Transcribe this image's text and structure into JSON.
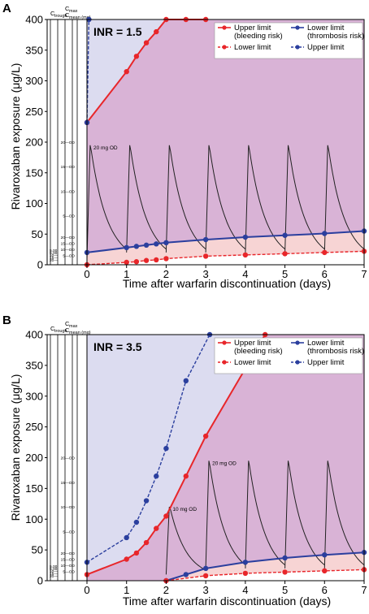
{
  "chart_data": [
    {
      "panel": "A",
      "type": "line",
      "inr_label": "INR = 1.5",
      "xlabel": "Time after warfarin discontinuation (days)",
      "ylabel": "Rivaroxaban exposure (μg/L)",
      "xlim": [
        0,
        7
      ],
      "ylim": [
        0,
        400
      ],
      "xticks": [
        0,
        1,
        2,
        3,
        4,
        5,
        6,
        7
      ],
      "yticks": [
        0,
        50,
        100,
        150,
        200,
        250,
        300,
        350,
        400
      ],
      "legend": {
        "position": "top-right",
        "entries": [
          {
            "label_lines": [
              "Upper limit",
              "(bleeding risk)"
            ],
            "color": "#e8262a",
            "style": "solid"
          },
          {
            "label_lines": [
              "Lower limit",
              "(thrombosis risk)"
            ],
            "color": "#2b3f9e",
            "style": "solid"
          },
          {
            "label_lines": [
              "Lower limit"
            ],
            "color": "#e8262a",
            "style": "dashed"
          },
          {
            "label_lines": [
              "Upper limit"
            ],
            "color": "#2b3f9e",
            "style": "dashed"
          }
        ]
      },
      "series": [
        {
          "role": "bleeding-upper",
          "color": "#e8262a",
          "style": "solid",
          "x": [
            0,
            1,
            1.25,
            1.5,
            1.75,
            2,
            2.5,
            3
          ],
          "y": [
            232,
            315,
            340,
            362,
            380,
            400,
            400,
            400
          ]
        },
        {
          "role": "bleeding-lower",
          "color": "#e8262a",
          "style": "dashed",
          "x": [
            0,
            1,
            1.25,
            1.5,
            1.75,
            2,
            3,
            4,
            5,
            6,
            7
          ],
          "y": [
            0,
            4,
            5,
            7,
            8,
            10,
            14,
            16,
            18,
            20,
            22
          ]
        },
        {
          "role": "thrombosis-lower",
          "color": "#2b3f9e",
          "style": "solid",
          "x": [
            0,
            1,
            1.25,
            1.5,
            1.75,
            2,
            3,
            4,
            5,
            6,
            7
          ],
          "y": [
            20,
            28,
            30,
            32,
            34,
            36,
            41,
            45,
            48,
            51,
            55
          ]
        },
        {
          "role": "thrombosis-upper",
          "color": "#2b3f9e",
          "style": "dashed",
          "x": [
            0,
            0.05
          ],
          "y": [
            232,
            400
          ]
        }
      ],
      "pk_doses": [
        {
          "start_day": 0,
          "peak": 195,
          "trough": 10,
          "label": "20 mg OD"
        },
        {
          "start_day": 1,
          "peak": 195,
          "trough": 20
        },
        {
          "start_day": 2,
          "peak": 195,
          "trough": 20
        },
        {
          "start_day": 3,
          "peak": 195,
          "trough": 20
        },
        {
          "start_day": 4,
          "peak": 195,
          "trough": 20
        },
        {
          "start_day": 5,
          "peak": 195,
          "trough": 20
        },
        {
          "start_day": 6,
          "peak": 195,
          "trough": 20
        }
      ],
      "inset": {
        "cmax_label": "C",
        "cmax_sub": "max",
        "ctrough_label": "C",
        "ctrough_sub": "trough",
        "cmean_label": "C",
        "cmean_sub": "mean (mg)",
        "dose_marks": [
          {
            "value": 200,
            "text": "20—OD"
          },
          {
            "value": 160,
            "text": "15—OD"
          },
          {
            "value": 120,
            "text": "10—OD"
          },
          {
            "value": 80,
            "text": "5—OD"
          },
          {
            "value": 45,
            "text": "20—OD"
          },
          {
            "value": 35,
            "text": "15—OD"
          },
          {
            "value": 25,
            "text": "10—OD"
          },
          {
            "value": 15,
            "text": "5—OD"
          }
        ],
        "mean_marks": [
          "20—",
          "15—",
          "10—",
          "5.00",
          "5.00"
        ]
      }
    },
    {
      "panel": "B",
      "type": "line",
      "inr_label": "INR = 3.5",
      "xlabel": "Time after warfarin discontinuation (days)",
      "ylabel": "Rivaroxaban exposure (μg/L)",
      "xlim": [
        0,
        7
      ],
      "ylim": [
        0,
        400
      ],
      "xticks": [
        0,
        1,
        2,
        3,
        4,
        5,
        6,
        7
      ],
      "yticks": [
        0,
        50,
        100,
        150,
        200,
        250,
        300,
        350,
        400
      ],
      "legend": {
        "position": "top-right",
        "entries": [
          {
            "label_lines": [
              "Upper limit",
              "(bleeding risk)"
            ],
            "color": "#e8262a",
            "style": "solid"
          },
          {
            "label_lines": [
              "Lower limit",
              "(thrombosis risk)"
            ],
            "color": "#2b3f9e",
            "style": "solid"
          },
          {
            "label_lines": [
              "Lower limit"
            ],
            "color": "#e8262a",
            "style": "dashed"
          },
          {
            "label_lines": [
              "Upper limit"
            ],
            "color": "#2b3f9e",
            "style": "dashed"
          }
        ]
      },
      "series": [
        {
          "role": "bleeding-upper",
          "color": "#e8262a",
          "style": "solid",
          "x": [
            0,
            1,
            1.25,
            1.5,
            1.75,
            2,
            2.5,
            3,
            4,
            4.5
          ],
          "y": [
            10,
            35,
            45,
            62,
            85,
            105,
            170,
            235,
            345,
            400
          ]
        },
        {
          "role": "thrombosis-upper",
          "color": "#2b3f9e",
          "style": "dashed",
          "x": [
            0,
            1,
            1.25,
            1.5,
            1.75,
            2,
            2.5,
            3.1
          ],
          "y": [
            30,
            70,
            95,
            130,
            170,
            215,
            325,
            400
          ]
        },
        {
          "role": "thrombosis-lower",
          "color": "#2b3f9e",
          "style": "solid",
          "x": [
            2,
            2.5,
            3,
            4,
            5,
            6,
            7
          ],
          "y": [
            0,
            10,
            20,
            30,
            37,
            42,
            46
          ]
        },
        {
          "role": "bleeding-lower",
          "color": "#e8262a",
          "style": "dashed",
          "x": [
            2,
            3,
            4,
            5,
            6,
            7
          ],
          "y": [
            0,
            8,
            12,
            14,
            16,
            18
          ]
        }
      ],
      "pk_doses": [
        {
          "start_day": 2,
          "peak": 120,
          "trough": 10,
          "label": "10 mg OD"
        },
        {
          "start_day": 3,
          "peak": 195,
          "trough": 20,
          "label": "20 mg OD"
        },
        {
          "start_day": 4,
          "peak": 195,
          "trough": 20
        },
        {
          "start_day": 5,
          "peak": 195,
          "trough": 20
        },
        {
          "start_day": 6,
          "peak": 195,
          "trough": 20
        }
      ],
      "inset": {
        "cmax_label": "C",
        "cmax_sub": "max",
        "ctrough_label": "C",
        "ctrough_sub": "trough",
        "cmean_label": "C",
        "cmean_sub": "mean (mg)",
        "dose_marks": [
          {
            "value": 200,
            "text": "20—OD"
          },
          {
            "value": 160,
            "text": "15—OD"
          },
          {
            "value": 120,
            "text": "10—OD"
          },
          {
            "value": 80,
            "text": "5—OD"
          },
          {
            "value": 45,
            "text": "20—OD"
          },
          {
            "value": 35,
            "text": "15—OD"
          },
          {
            "value": 25,
            "text": "10—OD"
          },
          {
            "value": 15,
            "text": "5—OD"
          }
        ],
        "mean_marks": [
          "20—",
          "15—",
          "10—",
          "5.00",
          "5.00"
        ]
      }
    }
  ],
  "colors": {
    "purple_fill": "#d9b3d6",
    "lavender_fill": "#dcdcf0",
    "pink_fill": "#f7d4d4",
    "red": "#e8262a",
    "blue": "#2b3f9e"
  }
}
